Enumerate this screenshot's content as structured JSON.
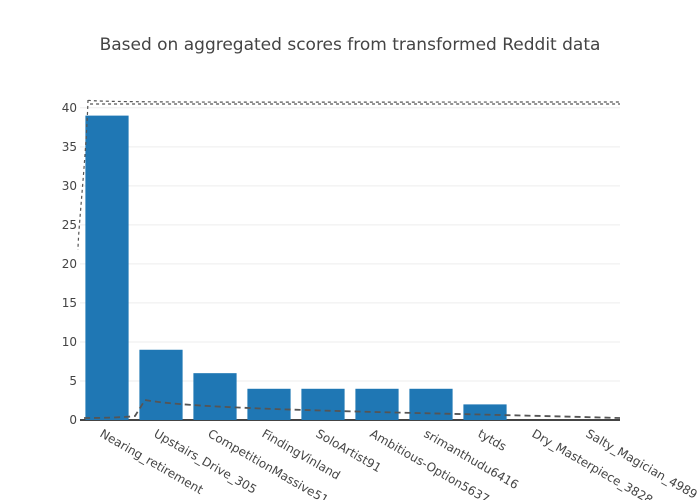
{
  "chart_data": {
    "type": "bar",
    "title": "Based on aggregated scores from transformed Reddit data",
    "xlabel": "",
    "ylabel": "",
    "categories": [
      "Nearing_retirement",
      "Upstairs_Drive_305",
      "CompetitionMassive51",
      "FindingVinland",
      "SoloArtist91",
      "Ambitious-Option5637",
      "srimanthudu6416",
      "tytds",
      "Dry_Masterpiece_3828",
      "Salty_Magician_4989"
    ],
    "values": [
      39,
      9,
      6,
      4,
      4,
      4,
      4,
      2,
      0,
      0
    ],
    "ylim": [
      0,
      41
    ],
    "yticks": [
      0,
      5,
      10,
      15,
      20,
      25,
      30,
      35,
      40
    ],
    "grid": true,
    "legend": "none",
    "bar_color": "#1f77b4"
  }
}
